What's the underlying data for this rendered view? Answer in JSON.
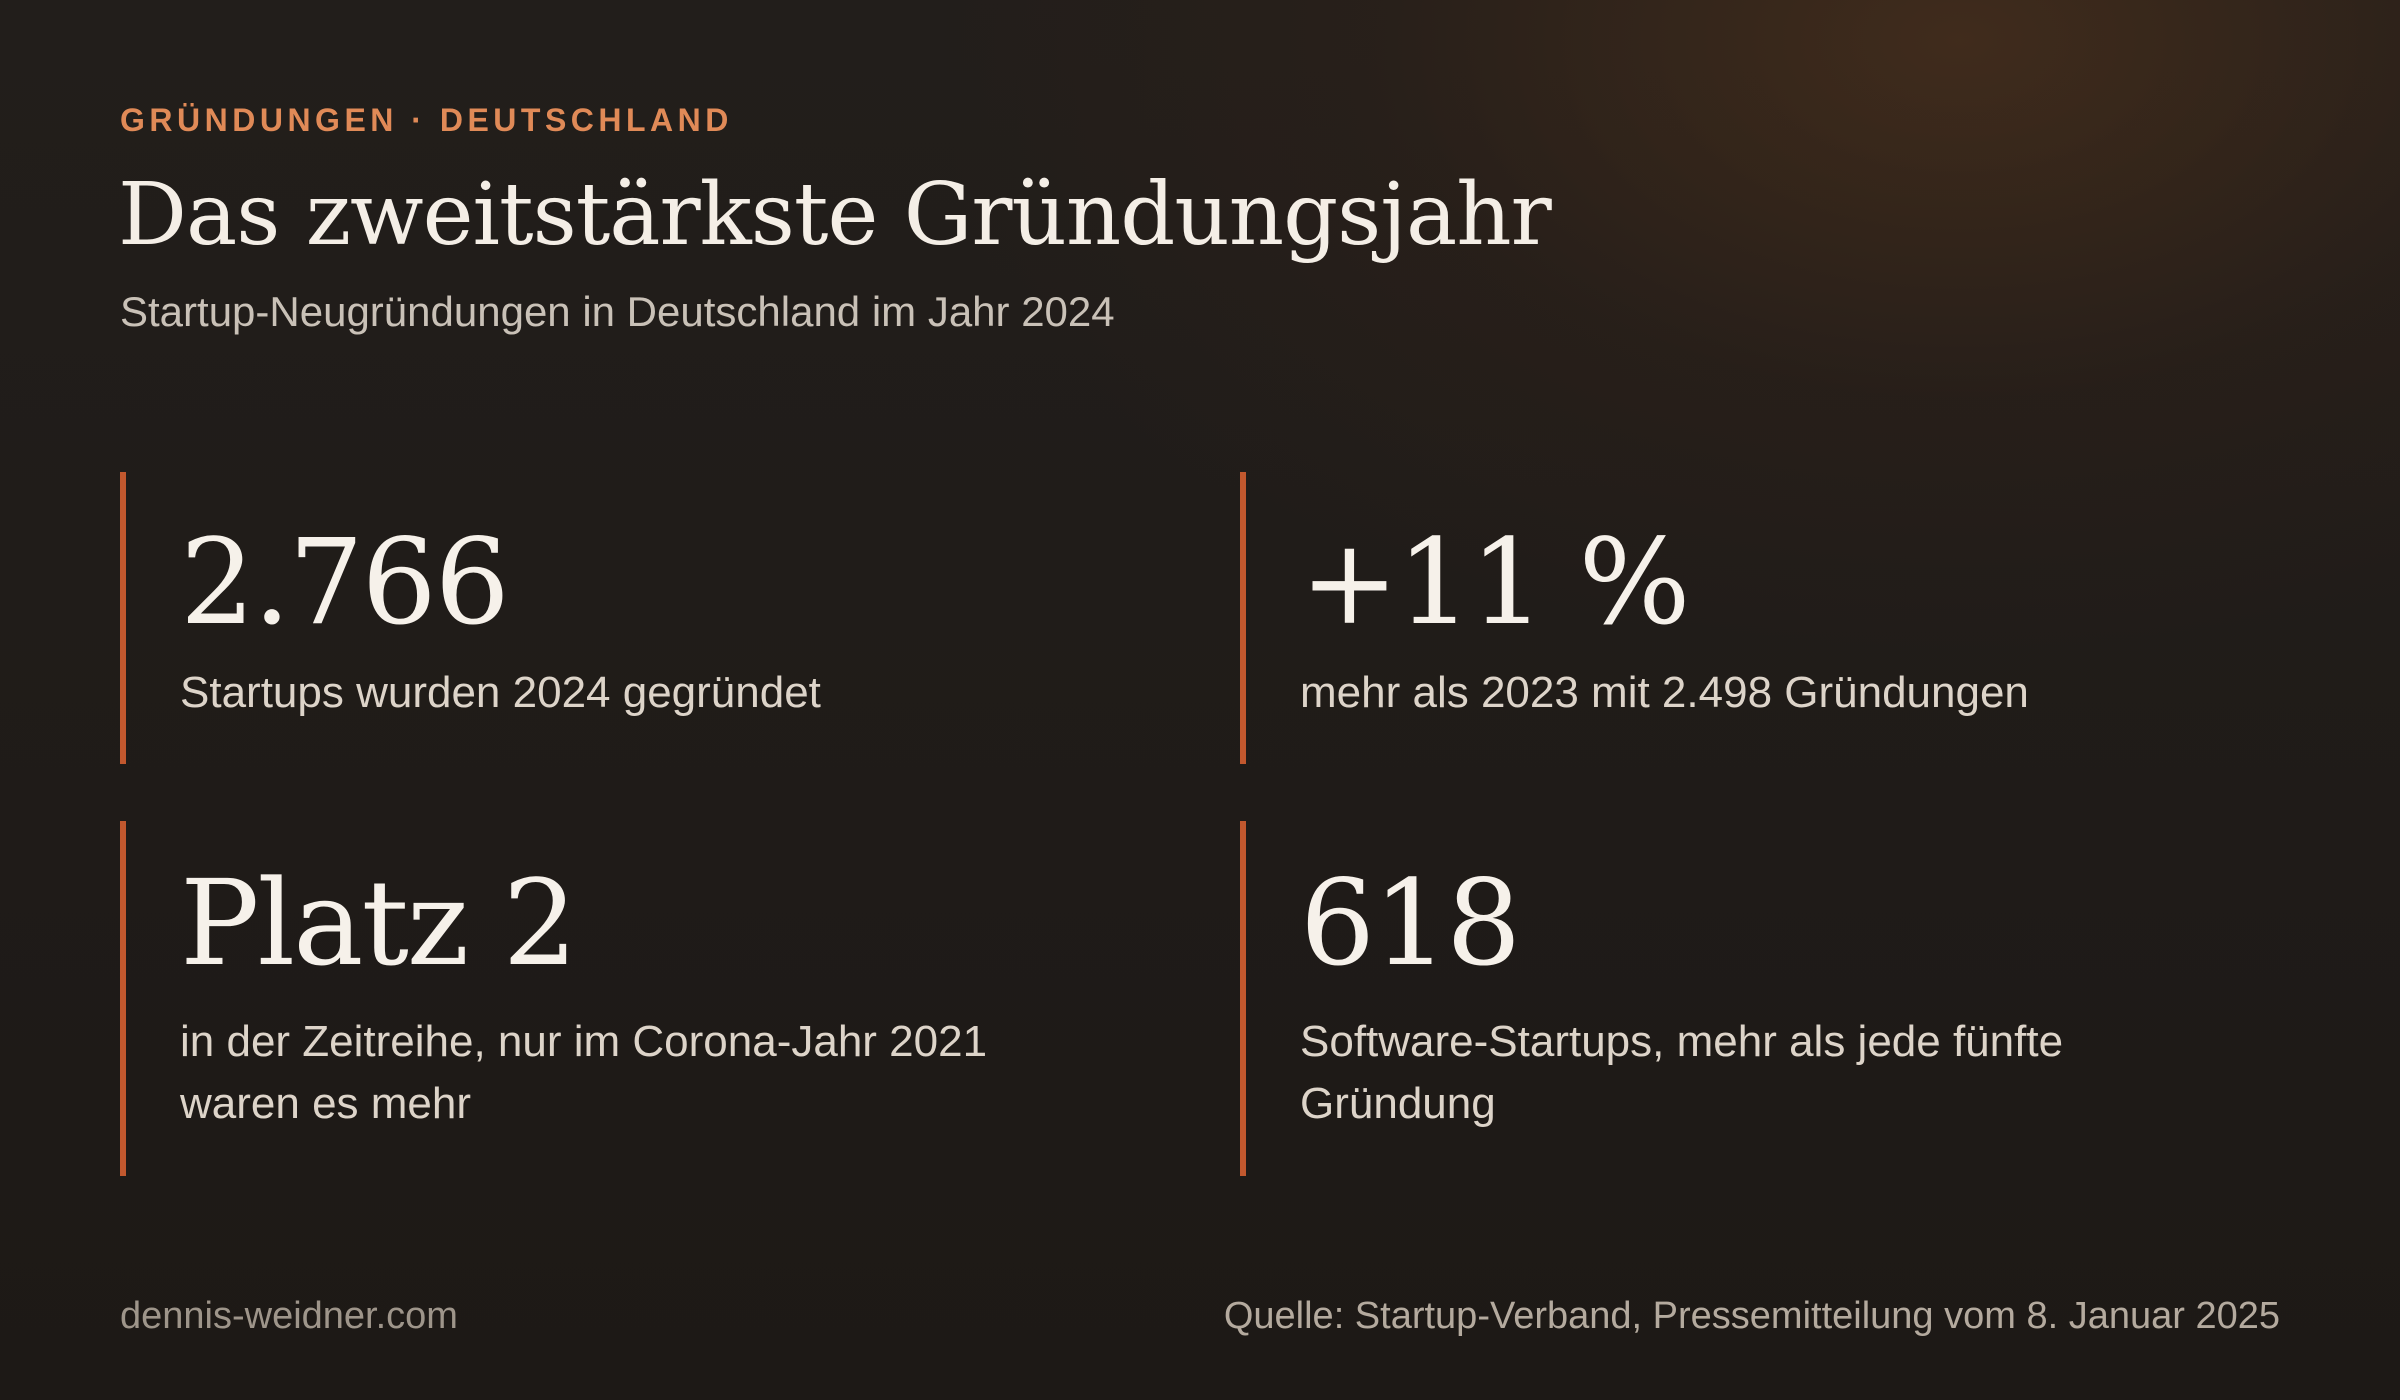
{
  "header": {
    "eyebrow": "GRÜNDUNGEN · DEUTSCHLAND",
    "title": "Das zweitstärkste Gründungsjahr",
    "subtitle": "Startup-Neugründungen in Deutschland im Jahr 2024"
  },
  "stats": [
    {
      "value": "2.766",
      "label": "Startups wurden 2024 gegründet"
    },
    {
      "value": "+11 %",
      "label": "mehr als 2023 mit 2.498 Gründungen"
    },
    {
      "value": "Platz 2",
      "label": "in der Zeitreihe, nur im Corona-Jahr 2021 waren es mehr"
    },
    {
      "value": "618",
      "label": "Software-Startups, mehr als jede fünfte Gründung"
    }
  ],
  "footer": {
    "site": "dennis-weidner.com",
    "source": "Quelle: Startup-Verband, Pressemitteilung vom 8. Januar 2025"
  },
  "colors": {
    "accent": "#e08a57",
    "bar": "#c2582e",
    "background": "#1f1b18"
  }
}
